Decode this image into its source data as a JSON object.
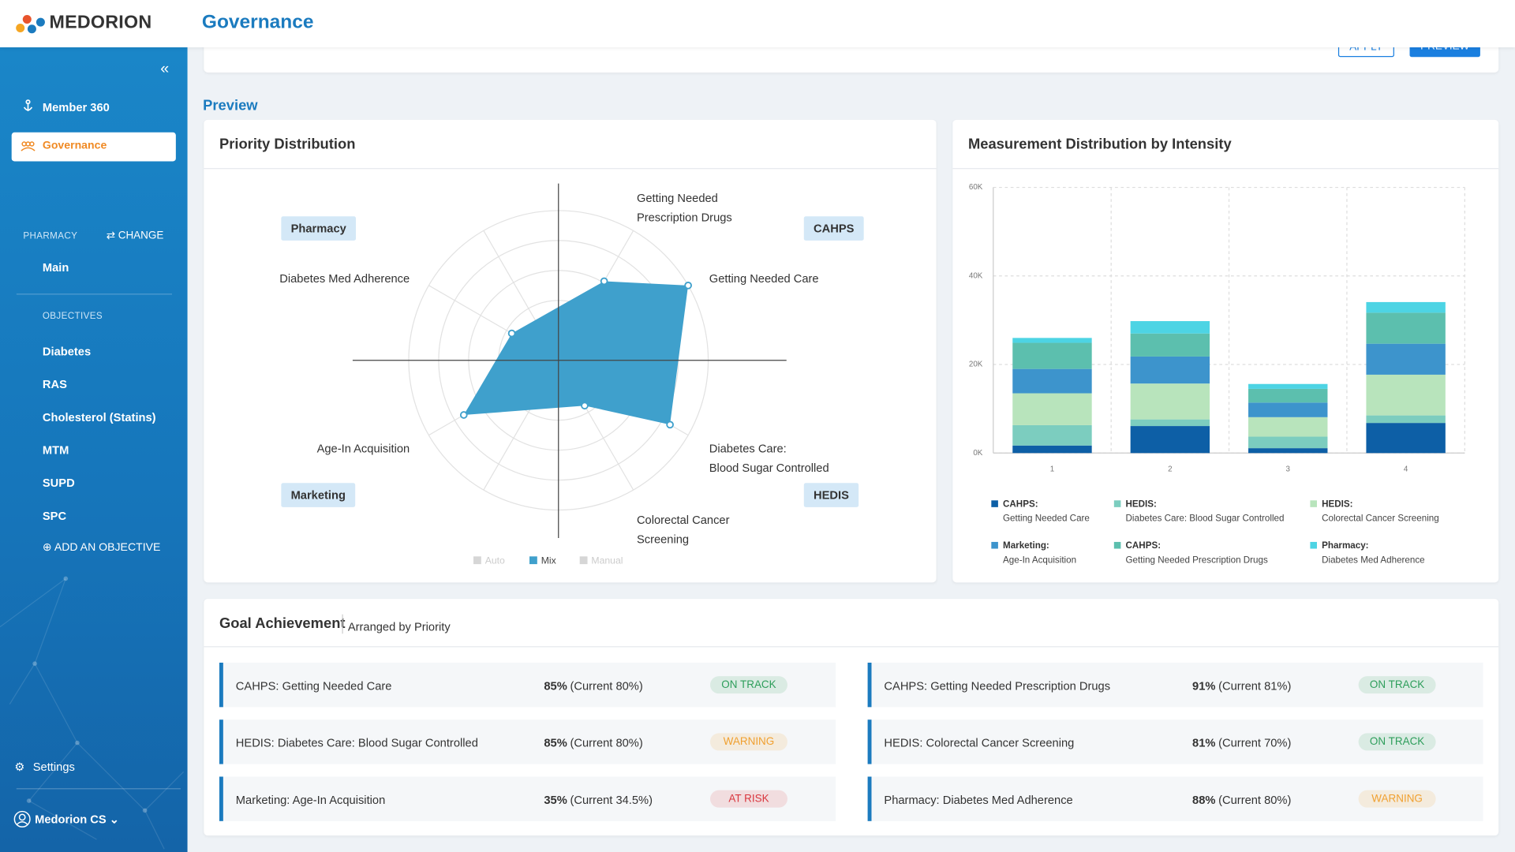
{
  "header": {
    "brand": "MEDORION",
    "page": "Governance"
  },
  "sidebar": {
    "nav": [
      "Member 360",
      "Governance"
    ],
    "section": "PHARMACY",
    "change": "CHANGE",
    "program": "Main",
    "objectives_label": "OBJECTIVES",
    "objectives": [
      "Diabetes",
      "RAS",
      "Cholesterol (Statins)",
      "MTM",
      "SUPD",
      "SPC"
    ],
    "add": "ADD AN OBJECTIVE",
    "settings": "Settings",
    "user": "Medorion CS"
  },
  "toolbar": {
    "apply": "APPLY",
    "preview": "PREVIEW"
  },
  "section_title": "Preview",
  "chart_data": [
    {
      "type": "radar",
      "title": "Priority Distribution",
      "categories": [
        "Getting Needed Prescription Drugs",
        "Getting Needed Care",
        "Diabetes Care: Blood Sugar Controlled",
        "Colorectal Cancer Screening",
        "Age-In Acquisition",
        "Diabetes Med Adherence"
      ],
      "values": [
        61,
        100,
        86,
        35,
        73,
        36
      ],
      "groups": [
        "CAHPS",
        "HEDIS",
        "Marketing",
        "Pharmacy"
      ],
      "rlim": [
        0,
        100
      ],
      "rticks": [
        20,
        40,
        60,
        80,
        100
      ],
      "color": "#3fa0cc",
      "legend": [
        {
          "name": "Auto",
          "active": false
        },
        {
          "name": "Mix",
          "active": true
        },
        {
          "name": "Manual",
          "active": false
        }
      ]
    },
    {
      "type": "bar",
      "stacked": true,
      "title": "Measurement Distribution by Intensity",
      "categories": [
        "1",
        "2",
        "3",
        "4"
      ],
      "series": [
        {
          "group": "CAHPS:",
          "name": "Getting Needed Care",
          "color": "#0d5fa6",
          "values": [
            1700,
            6100,
            1100,
            6800
          ]
        },
        {
          "group": "HEDIS:",
          "name": "Diabetes Care: Blood Sugar Controlled",
          "color": "#7ccdbf",
          "values": [
            4600,
            1500,
            2600,
            1700
          ]
        },
        {
          "group": "HEDIS:",
          "name": "Colorectal Cancer Screening",
          "color": "#b8e4bc",
          "values": [
            7200,
            8100,
            4400,
            9200
          ]
        },
        {
          "group": "Marketing:",
          "name": "Age-In Acquisition",
          "color": "#3d94cc",
          "values": [
            5500,
            6100,
            3300,
            7000
          ]
        },
        {
          "group": "CAHPS:",
          "name": "Getting Needed Prescription Drugs",
          "color": "#5cbfae",
          "values": [
            5900,
            5200,
            3100,
            7000
          ]
        },
        {
          "group": "Pharmacy:",
          "name": "Diabetes Med Adherence",
          "color": "#4dd4e4",
          "values": [
            1100,
            2800,
            1100,
            2400
          ]
        }
      ],
      "ylim": [
        0,
        60000
      ],
      "yticks": [
        {
          "value": 0,
          "label": "0K"
        },
        {
          "value": 20000,
          "label": "20K"
        },
        {
          "value": 40000,
          "label": "40K"
        },
        {
          "value": 60000,
          "label": "60K"
        }
      ],
      "grid": true
    }
  ],
  "goals": {
    "title": "Goal Achievement",
    "subtitle": "Arranged by Priority",
    "items": [
      {
        "measure": "CAHPS: Getting Needed Care",
        "target": "85%",
        "current": "(Current 80%)",
        "status": "ON TRACK",
        "color": "#2e9e5b"
      },
      {
        "measure": "HEDIS: Diabetes Care: Blood Sugar Controlled",
        "target": "85%",
        "current": "(Current 80%)",
        "status": "WARNING",
        "color": "#f0a030"
      },
      {
        "measure": "Marketing: Age-In Acquisition",
        "target": "35%",
        "current": "(Current 34.5%)",
        "status": "AT RISK",
        "color": "#d9363e"
      },
      {
        "measure": "CAHPS: Getting Needed Prescription Drugs",
        "target": "91%",
        "current": "(Current 81%)",
        "status": "ON TRACK",
        "color": "#2e9e5b"
      },
      {
        "measure": "HEDIS: Colorectal Cancer Screening",
        "target": "81%",
        "current": "(Current 70%)",
        "status": "ON TRACK",
        "color": "#2e9e5b"
      },
      {
        "measure": "Pharmacy: Diabetes Med Adherence",
        "target": "88%",
        "current": "(Current 80%)",
        "status": "WARNING",
        "color": "#f0a030"
      }
    ]
  }
}
